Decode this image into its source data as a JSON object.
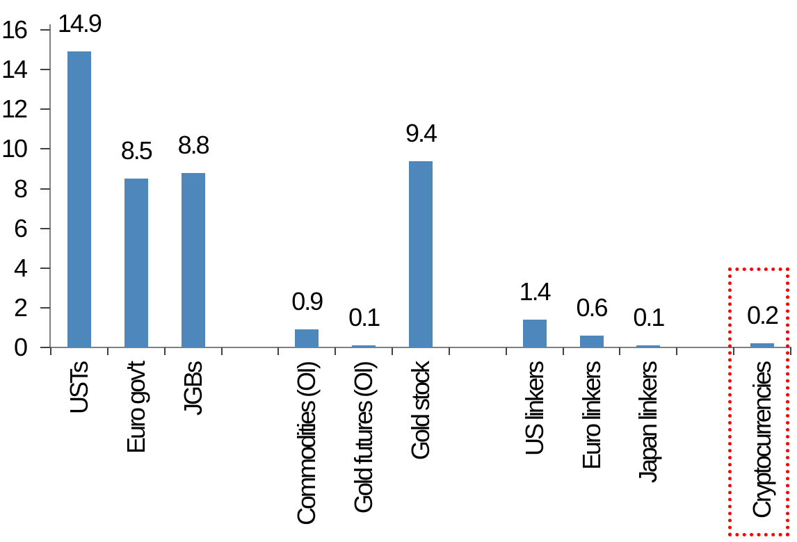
{
  "chart_data": {
    "type": "bar",
    "title": "",
    "xlabel": "",
    "ylabel": "",
    "ylim": [
      0,
      16
    ],
    "yticks": [
      0,
      2,
      4,
      6,
      8,
      10,
      12,
      14,
      16
    ],
    "grid": false,
    "legend": null,
    "categories": [
      "USTs",
      "Euro gov't",
      "JGBs",
      "",
      "Commodities (OI)",
      "Gold futures (OI)",
      "Gold stock",
      "",
      "US linkers",
      "Euro linkers",
      "Japan linkers",
      "",
      "Cryptocurrencies"
    ],
    "values": [
      14.9,
      8.5,
      8.8,
      null,
      0.9,
      0.1,
      9.4,
      null,
      1.4,
      0.6,
      0.1,
      null,
      0.2
    ],
    "value_labels": [
      "14.9",
      "8.5",
      "8.8",
      "",
      "0.9",
      "0.1",
      "9.4",
      "",
      "1.4",
      "0.6",
      "0.1",
      "",
      "0.2"
    ],
    "bar_color": "#4E87BC",
    "axis_color": "#808080",
    "tick_color": "#404040",
    "text_color": "#000000",
    "highlight": {
      "category": "Cryptocurrencies",
      "style": "dotted-box",
      "box_color": "#FF0000"
    }
  }
}
